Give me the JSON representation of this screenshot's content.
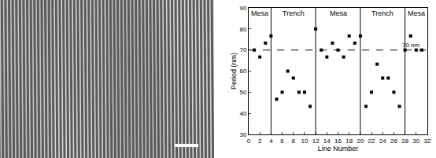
{
  "chart_data": {
    "type": "scatter",
    "x": [
      1,
      2,
      3,
      4,
      5,
      6,
      7,
      8,
      9,
      10,
      11,
      12,
      13,
      14,
      15,
      16,
      17,
      18,
      19,
      20,
      21,
      22,
      23,
      24,
      25,
      26,
      27,
      28,
      29,
      30,
      31
    ],
    "values": [
      70,
      66.7,
      73.3,
      76.7,
      46.7,
      50,
      60,
      56.7,
      50,
      50,
      43.3,
      80,
      70,
      66.7,
      73.3,
      70,
      66.7,
      76.7,
      73.3,
      76.7,
      43.3,
      50,
      63.3,
      56.7,
      56.7,
      50,
      43.3,
      70,
      76.7,
      70,
      70
    ],
    "color": "#000000",
    "marker": "square",
    "xlabel": "Line Number",
    "ylabel": "Period (nm)",
    "xlim": [
      0,
      32
    ],
    "xticks": [
      0,
      2,
      4,
      6,
      8,
      10,
      12,
      14,
      16,
      18,
      20,
      22,
      24,
      26,
      28,
      30,
      32
    ],
    "ylim": [
      30,
      90
    ],
    "yticks": [
      30,
      40,
      50,
      60,
      70,
      80,
      90
    ],
    "grid": false,
    "reference_line": {
      "value": 70,
      "label": "70 nm",
      "line_style": "dash"
    },
    "regions": [
      {
        "label": "Mesa",
        "start": 0,
        "end": 4
      },
      {
        "label": "Trench",
        "start": 4,
        "end": 12
      },
      {
        "label": "Mesa",
        "start": 12,
        "end": 20
      },
      {
        "label": "Trench",
        "start": 20,
        "end": 28
      },
      {
        "label": "Mesa",
        "start": 28,
        "end": 32
      }
    ]
  }
}
